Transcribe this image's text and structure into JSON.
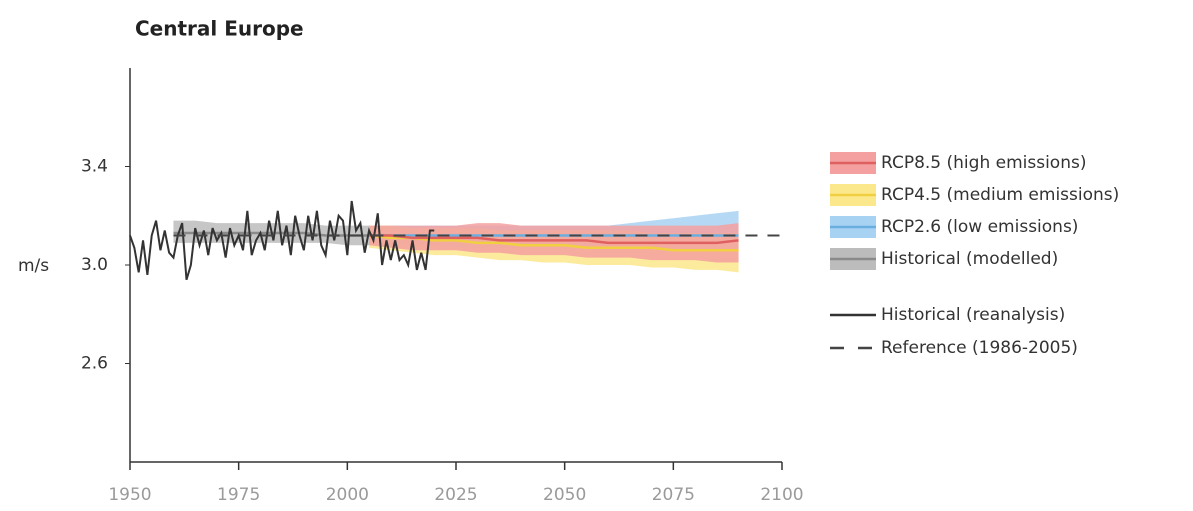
{
  "chart_data": {
    "type": "line",
    "title": "Central Europe",
    "y_label": "m/s",
    "xlim": [
      1950,
      2100
    ],
    "xticks": [
      1950,
      1975,
      2000,
      2025,
      2050,
      2075,
      2100
    ],
    "ylim": [
      2.2,
      3.8
    ],
    "yticks": [
      2.6,
      {
        "value": 3,
        "label": "3.0"
      },
      3.4
    ],
    "series": [
      {
        "name": "RCP8.5 (high emissions)",
        "color": "#e06060",
        "band_color": "#f4a0a0",
        "x": [
          2005,
          2010,
          2015,
          2020,
          2025,
          2030,
          2035,
          2040,
          2045,
          2050,
          2055,
          2060,
          2065,
          2070,
          2075,
          2080,
          2085,
          2090
        ],
        "values": [
          3.12,
          3.12,
          3.11,
          3.11,
          3.11,
          3.11,
          3.1,
          3.1,
          3.1,
          3.1,
          3.1,
          3.09,
          3.09,
          3.09,
          3.09,
          3.09,
          3.09,
          3.1
        ],
        "lower": [
          3.08,
          3.07,
          3.06,
          3.06,
          3.06,
          3.05,
          3.05,
          3.04,
          3.04,
          3.04,
          3.03,
          3.03,
          3.03,
          3.02,
          3.02,
          3.02,
          3.01,
          3.01
        ],
        "upper": [
          3.16,
          3.16,
          3.16,
          3.16,
          3.16,
          3.17,
          3.17,
          3.16,
          3.16,
          3.16,
          3.16,
          3.16,
          3.16,
          3.16,
          3.16,
          3.16,
          3.16,
          3.17
        ]
      },
      {
        "name": "RCP4.5 (medium emissions)",
        "color": "#f0d040",
        "band_color": "#fbe88c",
        "x": [
          2005,
          2010,
          2015,
          2020,
          2025,
          2030,
          2035,
          2040,
          2045,
          2050,
          2055,
          2060,
          2065,
          2070,
          2075,
          2080,
          2085,
          2090
        ],
        "values": [
          3.12,
          3.11,
          3.11,
          3.1,
          3.1,
          3.09,
          3.09,
          3.08,
          3.08,
          3.08,
          3.07,
          3.07,
          3.07,
          3.07,
          3.06,
          3.06,
          3.06,
          3.06
        ],
        "lower": [
          3.07,
          3.06,
          3.05,
          3.04,
          3.04,
          3.03,
          3.02,
          3.02,
          3.01,
          3.01,
          3.0,
          3.0,
          3.0,
          2.99,
          2.99,
          2.98,
          2.98,
          2.97
        ],
        "upper": [
          3.16,
          3.16,
          3.15,
          3.15,
          3.15,
          3.15,
          3.14,
          3.14,
          3.14,
          3.14,
          3.14,
          3.14,
          3.14,
          3.13,
          3.13,
          3.13,
          3.13,
          3.13
        ]
      },
      {
        "name": "RCP2.6 (low emissions)",
        "color": "#6aaee0",
        "band_color": "#a8d2f2",
        "x": [
          2005,
          2010,
          2015,
          2020,
          2025,
          2030,
          2035,
          2040,
          2045,
          2050,
          2055,
          2060,
          2065,
          2070,
          2075,
          2080,
          2085,
          2090
        ],
        "values": [
          3.12,
          3.12,
          3.12,
          3.12,
          3.12,
          3.12,
          3.12,
          3.12,
          3.12,
          3.12,
          3.12,
          3.12,
          3.12,
          3.12,
          3.12,
          3.12,
          3.12,
          3.12
        ],
        "lower": [
          3.08,
          3.08,
          3.08,
          3.08,
          3.07,
          3.07,
          3.07,
          3.07,
          3.07,
          3.07,
          3.07,
          3.07,
          3.07,
          3.06,
          3.06,
          3.06,
          3.06,
          3.06
        ],
        "upper": [
          3.16,
          3.16,
          3.16,
          3.16,
          3.16,
          3.16,
          3.16,
          3.16,
          3.16,
          3.16,
          3.16,
          3.16,
          3.17,
          3.18,
          3.19,
          3.2,
          3.21,
          3.22
        ]
      },
      {
        "name": "Historical (modelled)",
        "color": "#8a8a8a",
        "band_color": "#bcbcbc",
        "x": [
          1960,
          1965,
          1970,
          1975,
          1980,
          1985,
          1990,
          1995,
          2000,
          2005
        ],
        "values": [
          3.13,
          3.13,
          3.13,
          3.13,
          3.13,
          3.13,
          3.13,
          3.12,
          3.12,
          3.12
        ],
        "lower": [
          3.09,
          3.09,
          3.09,
          3.09,
          3.09,
          3.09,
          3.09,
          3.09,
          3.08,
          3.08
        ],
        "upper": [
          3.18,
          3.18,
          3.17,
          3.17,
          3.17,
          3.17,
          3.17,
          3.16,
          3.16,
          3.16
        ]
      },
      {
        "name": "Historical (reanalysis)",
        "color": "#333333",
        "x": [
          1950,
          1951,
          1952,
          1953,
          1954,
          1955,
          1956,
          1957,
          1958,
          1959,
          1960,
          1961,
          1962,
          1963,
          1964,
          1965,
          1966,
          1967,
          1968,
          1969,
          1970,
          1971,
          1972,
          1973,
          1974,
          1975,
          1976,
          1977,
          1978,
          1979,
          1980,
          1981,
          1982,
          1983,
          1984,
          1985,
          1986,
          1987,
          1988,
          1989,
          1990,
          1991,
          1992,
          1993,
          1994,
          1995,
          1996,
          1997,
          1998,
          1999,
          2000,
          2001,
          2002,
          2003,
          2004,
          2005,
          2006,
          2007,
          2008,
          2009,
          2010,
          2011,
          2012,
          2013,
          2014,
          2015,
          2016,
          2017,
          2018,
          2019,
          2020
        ],
        "values": [
          3.12,
          3.07,
          2.97,
          3.1,
          2.96,
          3.12,
          3.18,
          3.06,
          3.14,
          3.05,
          3.03,
          3.12,
          3.17,
          2.94,
          3.0,
          3.15,
          3.08,
          3.14,
          3.04,
          3.15,
          3.1,
          3.13,
          3.03,
          3.15,
          3.08,
          3.12,
          3.06,
          3.22,
          3.04,
          3.1,
          3.13,
          3.06,
          3.18,
          3.1,
          3.22,
          3.08,
          3.16,
          3.04,
          3.2,
          3.12,
          3.06,
          3.2,
          3.1,
          3.22,
          3.08,
          3.04,
          3.18,
          3.1,
          3.2,
          3.18,
          3.04,
          3.26,
          3.14,
          3.17,
          3.05,
          3.14,
          3.1,
          3.21,
          3.0,
          3.1,
          3.02,
          3.1,
          3.02,
          3.04,
          3.0,
          3.1,
          2.98,
          3.05,
          2.98,
          3.14,
          3.14
        ]
      },
      {
        "name": "Reference (1986-2005)",
        "color": "#444444",
        "dashed": true,
        "x": [
          1960,
          2100
        ],
        "values": [
          3.12,
          3.12
        ]
      }
    ]
  }
}
